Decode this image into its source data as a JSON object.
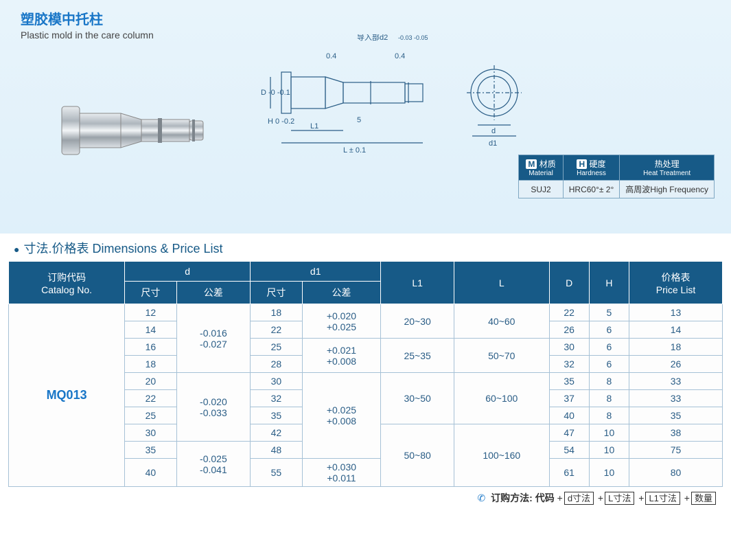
{
  "header": {
    "title_cn": "塑胶模中托柱",
    "title_en": "Plastic mold in the care column"
  },
  "diagram_labels": {
    "lead": "导入部d2",
    "lead_tol": "-0.03 -0.05",
    "chamfer1": "0.4",
    "chamfer2": "0.4",
    "D": "D -0 -0.1",
    "H": "H 0 -0.2",
    "L1": "L1",
    "five": "5",
    "L": "L ± 0.1",
    "d": "d",
    "d1": "d1"
  },
  "spec": {
    "headers": {
      "material_cn": "材质",
      "material_en": "Material",
      "material_badge": "M",
      "hardness_cn": "硬度",
      "hardness_en": "Hardness",
      "hardness_badge": "H",
      "heat_cn": "热处理",
      "heat_en": "Heat Treatment"
    },
    "values": {
      "material": "SUJ2",
      "hardness": "HRC60°± 2°",
      "heat": "高周波High Frequency"
    }
  },
  "section_title": "寸法.价格表 Dimensions & Price List",
  "columns": {
    "catalog_cn": "订购代码",
    "catalog_en": "Catalog No.",
    "d": "d",
    "d1": "d1",
    "L1": "L1",
    "L": "L",
    "D": "D",
    "H": "H",
    "price_cn": "价格表",
    "price_en": "Price List",
    "size": "尺寸",
    "tol": "公差"
  },
  "catalog": "MQ013",
  "tolerances": {
    "d_g1": "-0.016\n-0.027",
    "d_g2": "-0.020\n-0.033",
    "d_g3": "-0.025\n-0.041",
    "d1_g1": "+0.020\n+0.025",
    "d1_g2": "+0.021\n+0.008",
    "d1_g3": "+0.025\n+0.008",
    "d1_g4": "+0.030\n+0.011"
  },
  "ranges": {
    "l1_a": "20~30",
    "l_a": "40~60",
    "l1_b": "25~35",
    "l_b": "50~70",
    "l1_c": "30~50",
    "l_c": "60~100",
    "l1_d": "50~80",
    "l_d": "100~160"
  },
  "rows": [
    {
      "d": "12",
      "d1": "18",
      "D": "22",
      "H": "5",
      "price": "13"
    },
    {
      "d": "14",
      "d1": "22",
      "D": "26",
      "H": "6",
      "price": "14"
    },
    {
      "d": "16",
      "d1": "25",
      "D": "30",
      "H": "6",
      "price": "18"
    },
    {
      "d": "18",
      "d1": "28",
      "D": "32",
      "H": "6",
      "price": "26"
    },
    {
      "d": "20",
      "d1": "30",
      "D": "35",
      "H": "8",
      "price": "33"
    },
    {
      "d": "22",
      "d1": "32",
      "D": "37",
      "H": "8",
      "price": "33"
    },
    {
      "d": "25",
      "d1": "35",
      "D": "40",
      "H": "8",
      "price": "35"
    },
    {
      "d": "30",
      "d1": "42",
      "D": "47",
      "H": "10",
      "price": "38"
    },
    {
      "d": "35",
      "d1": "48",
      "D": "54",
      "H": "10",
      "price": "75"
    },
    {
      "d": "40",
      "d1": "55",
      "D": "61",
      "H": "10",
      "price": "80"
    }
  ],
  "footer": {
    "label": "订购方法: 代码",
    "b1": "d寸法",
    "b2": "L寸法",
    "b3": "L1寸法",
    "b4": "数量"
  },
  "colors": {
    "header_bg": "#175a87",
    "accent": "#1976c7",
    "panel_bg": "#e8f4fb",
    "cell_border": "#a6c1d6",
    "text": "#2a5d86"
  }
}
